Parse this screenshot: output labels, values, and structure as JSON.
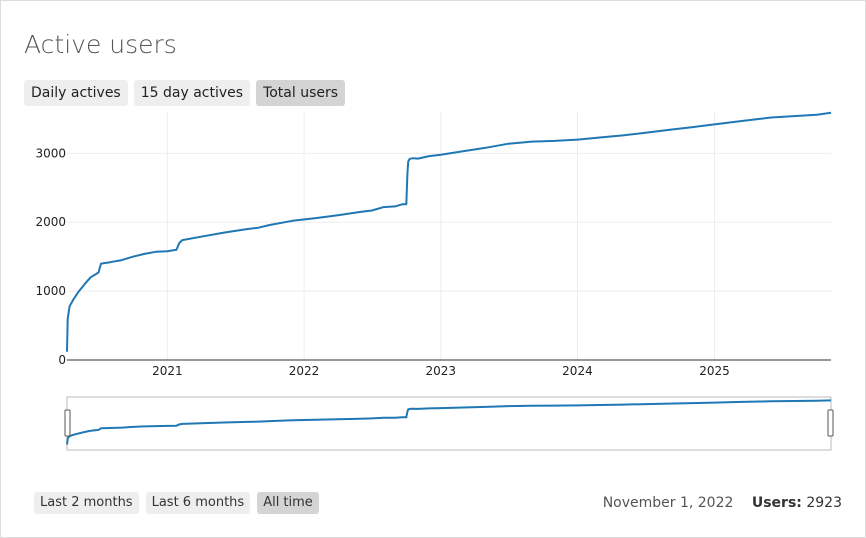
{
  "page": {
    "title": "Active users"
  },
  "tabs": [
    {
      "label": "Daily actives",
      "active": false
    },
    {
      "label": "15 day actives",
      "active": false
    },
    {
      "label": "Total users",
      "active": true
    }
  ],
  "range_buttons": [
    {
      "label": "Last 2 months",
      "active": false
    },
    {
      "label": "Last 6 months",
      "active": false
    },
    {
      "label": "All time",
      "active": true
    }
  ],
  "status": {
    "date": "November 1, 2022",
    "users_label": "Users:",
    "users_value": "2923"
  },
  "colors": {
    "line": "#1f77b4",
    "grid": "#eeeeee",
    "axis": "#333333",
    "tab_active": "#d4d4d4",
    "tab_bg": "#eeeeee"
  },
  "chart_data": {
    "type": "line",
    "title": "",
    "xlabel": "",
    "ylabel": "",
    "x_range": [
      "2020-04-08",
      "2025-11-08"
    ],
    "ylim": [
      0,
      3600
    ],
    "y_ticks": [
      0,
      1000,
      2000,
      3000
    ],
    "x_ticks": [
      "2021",
      "2022",
      "2023",
      "2024",
      "2025"
    ],
    "x_tick_dates": [
      "2021-01-01",
      "2022-01-01",
      "2023-01-01",
      "2024-01-01",
      "2025-01-01"
    ],
    "grid": true,
    "range_slider": true,
    "series": [
      {
        "x": [
          "2020-04-08",
          "2020-04-10",
          "2020-04-15",
          "2020-04-25",
          "2020-05-10",
          "2020-05-25",
          "2020-06-10",
          "2020-07-01",
          "2020-07-05",
          "2020-07-08",
          "2020-08-01",
          "2020-09-01",
          "2020-10-01",
          "2020-11-01",
          "2020-12-01",
          "2021-01-01",
          "2021-01-25",
          "2021-02-02",
          "2021-02-10",
          "2021-04-01",
          "2021-06-01",
          "2021-08-01",
          "2021-09-01",
          "2021-10-01",
          "2021-12-01",
          "2022-02-01",
          "2022-04-01",
          "2022-06-01",
          "2022-07-01",
          "2022-08-01",
          "2022-09-01",
          "2022-09-20",
          "2022-10-01",
          "2022-10-04",
          "2022-10-06",
          "2022-10-10",
          "2022-10-20",
          "2022-11-01",
          "2022-12-01",
          "2023-01-01",
          "2023-03-01",
          "2023-05-01",
          "2023-07-01",
          "2023-09-01",
          "2023-11-01",
          "2024-01-01",
          "2024-03-01",
          "2024-05-01",
          "2024-07-01",
          "2024-09-01",
          "2024-11-01",
          "2025-01-01",
          "2025-03-01",
          "2025-05-01",
          "2025-06-01",
          "2025-08-01",
          "2025-10-01",
          "2025-11-08"
        ],
        "y": [
          120,
          600,
          780,
          880,
          1000,
          1100,
          1200,
          1270,
          1350,
          1400,
          1420,
          1450,
          1500,
          1540,
          1570,
          1580,
          1600,
          1700,
          1740,
          1790,
          1850,
          1900,
          1920,
          1960,
          2020,
          2060,
          2100,
          2150,
          2170,
          2220,
          2230,
          2260,
          2260,
          2700,
          2880,
          2920,
          2930,
          2923,
          2960,
          2980,
          3030,
          3080,
          3140,
          3170,
          3180,
          3200,
          3230,
          3260,
          3300,
          3340,
          3380,
          3420,
          3460,
          3500,
          3520,
          3540,
          3560,
          3590
        ]
      }
    ]
  }
}
